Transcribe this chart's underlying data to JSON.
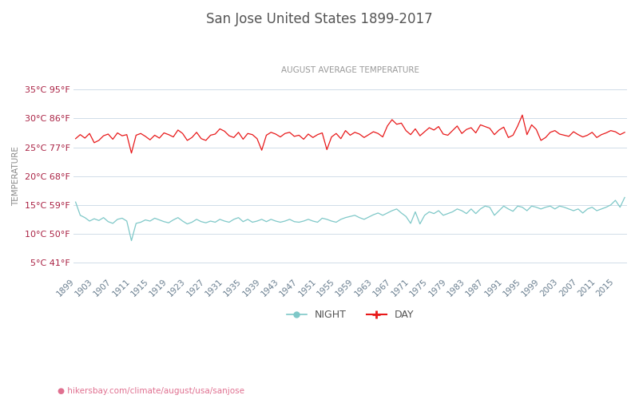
{
  "title": "San Jose United States 1899-2017",
  "subtitle": "AUGUST AVERAGE TEMPERATURE",
  "ylabel": "TEMPERATURE",
  "xlabel_url": "hikersbay.com/climate/august/usa/sanjose",
  "years": [
    1899,
    1900,
    1901,
    1902,
    1903,
    1904,
    1905,
    1906,
    1907,
    1908,
    1909,
    1910,
    1911,
    1912,
    1913,
    1914,
    1915,
    1916,
    1917,
    1918,
    1919,
    1920,
    1921,
    1922,
    1923,
    1924,
    1925,
    1926,
    1927,
    1928,
    1929,
    1930,
    1931,
    1932,
    1933,
    1934,
    1935,
    1936,
    1937,
    1938,
    1939,
    1940,
    1941,
    1942,
    1943,
    1944,
    1945,
    1946,
    1947,
    1948,
    1949,
    1950,
    1951,
    1952,
    1953,
    1954,
    1955,
    1956,
    1957,
    1958,
    1959,
    1960,
    1961,
    1962,
    1963,
    1964,
    1965,
    1966,
    1967,
    1968,
    1969,
    1970,
    1971,
    1972,
    1973,
    1974,
    1975,
    1976,
    1977,
    1978,
    1979,
    1980,
    1981,
    1982,
    1983,
    1984,
    1985,
    1986,
    1987,
    1988,
    1989,
    1990,
    1991,
    1992,
    1993,
    1994,
    1995,
    1996,
    1997,
    1998,
    1999,
    2000,
    2001,
    2002,
    2003,
    2004,
    2005,
    2006,
    2007,
    2008,
    2009,
    2010,
    2011,
    2012,
    2013,
    2014,
    2015,
    2016,
    2017
  ],
  "day_temps": [
    26.5,
    27.2,
    26.6,
    27.4,
    25.8,
    26.2,
    27.0,
    27.3,
    26.4,
    27.5,
    27.0,
    27.2,
    24.0,
    27.1,
    27.4,
    26.9,
    26.3,
    27.1,
    26.6,
    27.5,
    27.2,
    26.8,
    28.0,
    27.4,
    26.2,
    26.7,
    27.6,
    26.5,
    26.2,
    27.1,
    27.3,
    28.2,
    27.8,
    27.0,
    26.7,
    27.6,
    26.4,
    27.4,
    27.2,
    26.5,
    24.5,
    27.1,
    27.6,
    27.3,
    26.8,
    27.4,
    27.6,
    26.9,
    27.1,
    26.4,
    27.3,
    26.7,
    27.2,
    27.5,
    24.6,
    26.8,
    27.4,
    26.5,
    27.9,
    27.1,
    27.6,
    27.3,
    26.7,
    27.2,
    27.7,
    27.4,
    26.8,
    28.7,
    29.8,
    29.0,
    29.2,
    27.9,
    27.2,
    28.2,
    27.0,
    27.7,
    28.4,
    28.0,
    28.6,
    27.3,
    27.1,
    27.9,
    28.7,
    27.4,
    28.1,
    28.4,
    27.5,
    28.9,
    28.6,
    28.3,
    27.2,
    28.0,
    28.5,
    26.7,
    27.1,
    28.7,
    30.6,
    27.2,
    28.9,
    28.1,
    26.2,
    26.7,
    27.6,
    27.9,
    27.3,
    27.1,
    26.9,
    27.7,
    27.2,
    26.8,
    27.1,
    27.6,
    26.7,
    27.2,
    27.5,
    27.9,
    27.7,
    27.2,
    27.6
  ],
  "night_temps": [
    15.5,
    13.2,
    12.8,
    12.2,
    12.6,
    12.3,
    12.8,
    12.1,
    11.8,
    12.5,
    12.7,
    12.2,
    8.8,
    11.8,
    12.0,
    12.4,
    12.2,
    12.7,
    12.4,
    12.1,
    11.9,
    12.4,
    12.8,
    12.2,
    11.7,
    12.0,
    12.5,
    12.1,
    11.9,
    12.2,
    12.0,
    12.5,
    12.2,
    12.0,
    12.5,
    12.8,
    12.1,
    12.5,
    12.0,
    12.2,
    12.5,
    12.1,
    12.5,
    12.2,
    12.0,
    12.2,
    12.5,
    12.1,
    12.0,
    12.2,
    12.5,
    12.2,
    12.0,
    12.7,
    12.5,
    12.2,
    12.0,
    12.5,
    12.8,
    13.0,
    13.2,
    12.8,
    12.5,
    12.9,
    13.3,
    13.6,
    13.2,
    13.6,
    14.0,
    14.3,
    13.6,
    13.0,
    11.8,
    13.8,
    11.7,
    13.2,
    13.8,
    13.5,
    14.0,
    13.2,
    13.5,
    13.8,
    14.3,
    14.0,
    13.5,
    14.3,
    13.5,
    14.3,
    14.8,
    14.6,
    13.2,
    14.0,
    14.8,
    14.3,
    13.9,
    14.8,
    14.6,
    14.0,
    14.8,
    14.6,
    14.3,
    14.6,
    14.8,
    14.3,
    14.8,
    14.6,
    14.3,
    14.0,
    14.3,
    13.6,
    14.3,
    14.6,
    14.0,
    14.3,
    14.6,
    15.0,
    15.8,
    14.6,
    16.3
  ],
  "y_ticks_c": [
    5,
    10,
    15,
    20,
    25,
    30,
    35
  ],
  "y_ticks_f": [
    41,
    50,
    59,
    68,
    77,
    86,
    95
  ],
  "ylim": [
    3,
    37
  ],
  "x_ticks": [
    1899,
    1903,
    1907,
    1911,
    1915,
    1919,
    1923,
    1927,
    1931,
    1935,
    1939,
    1943,
    1947,
    1951,
    1955,
    1959,
    1963,
    1967,
    1971,
    1975,
    1979,
    1983,
    1987,
    1991,
    1995,
    1999,
    2003,
    2007,
    2011,
    2015
  ],
  "day_color": "#e8191a",
  "night_color": "#7ec8c8",
  "grid_color": "#d0dce8",
  "title_color": "#555555",
  "subtitle_color": "#999999",
  "tick_label_color": "#aa2244",
  "x_tick_color": "#6a7f90",
  "axis_label_color": "#888888",
  "background_color": "#ffffff",
  "url_color": "#e07090",
  "legend_night_color": "#7ec8c8",
  "legend_day_color": "#e8191a"
}
